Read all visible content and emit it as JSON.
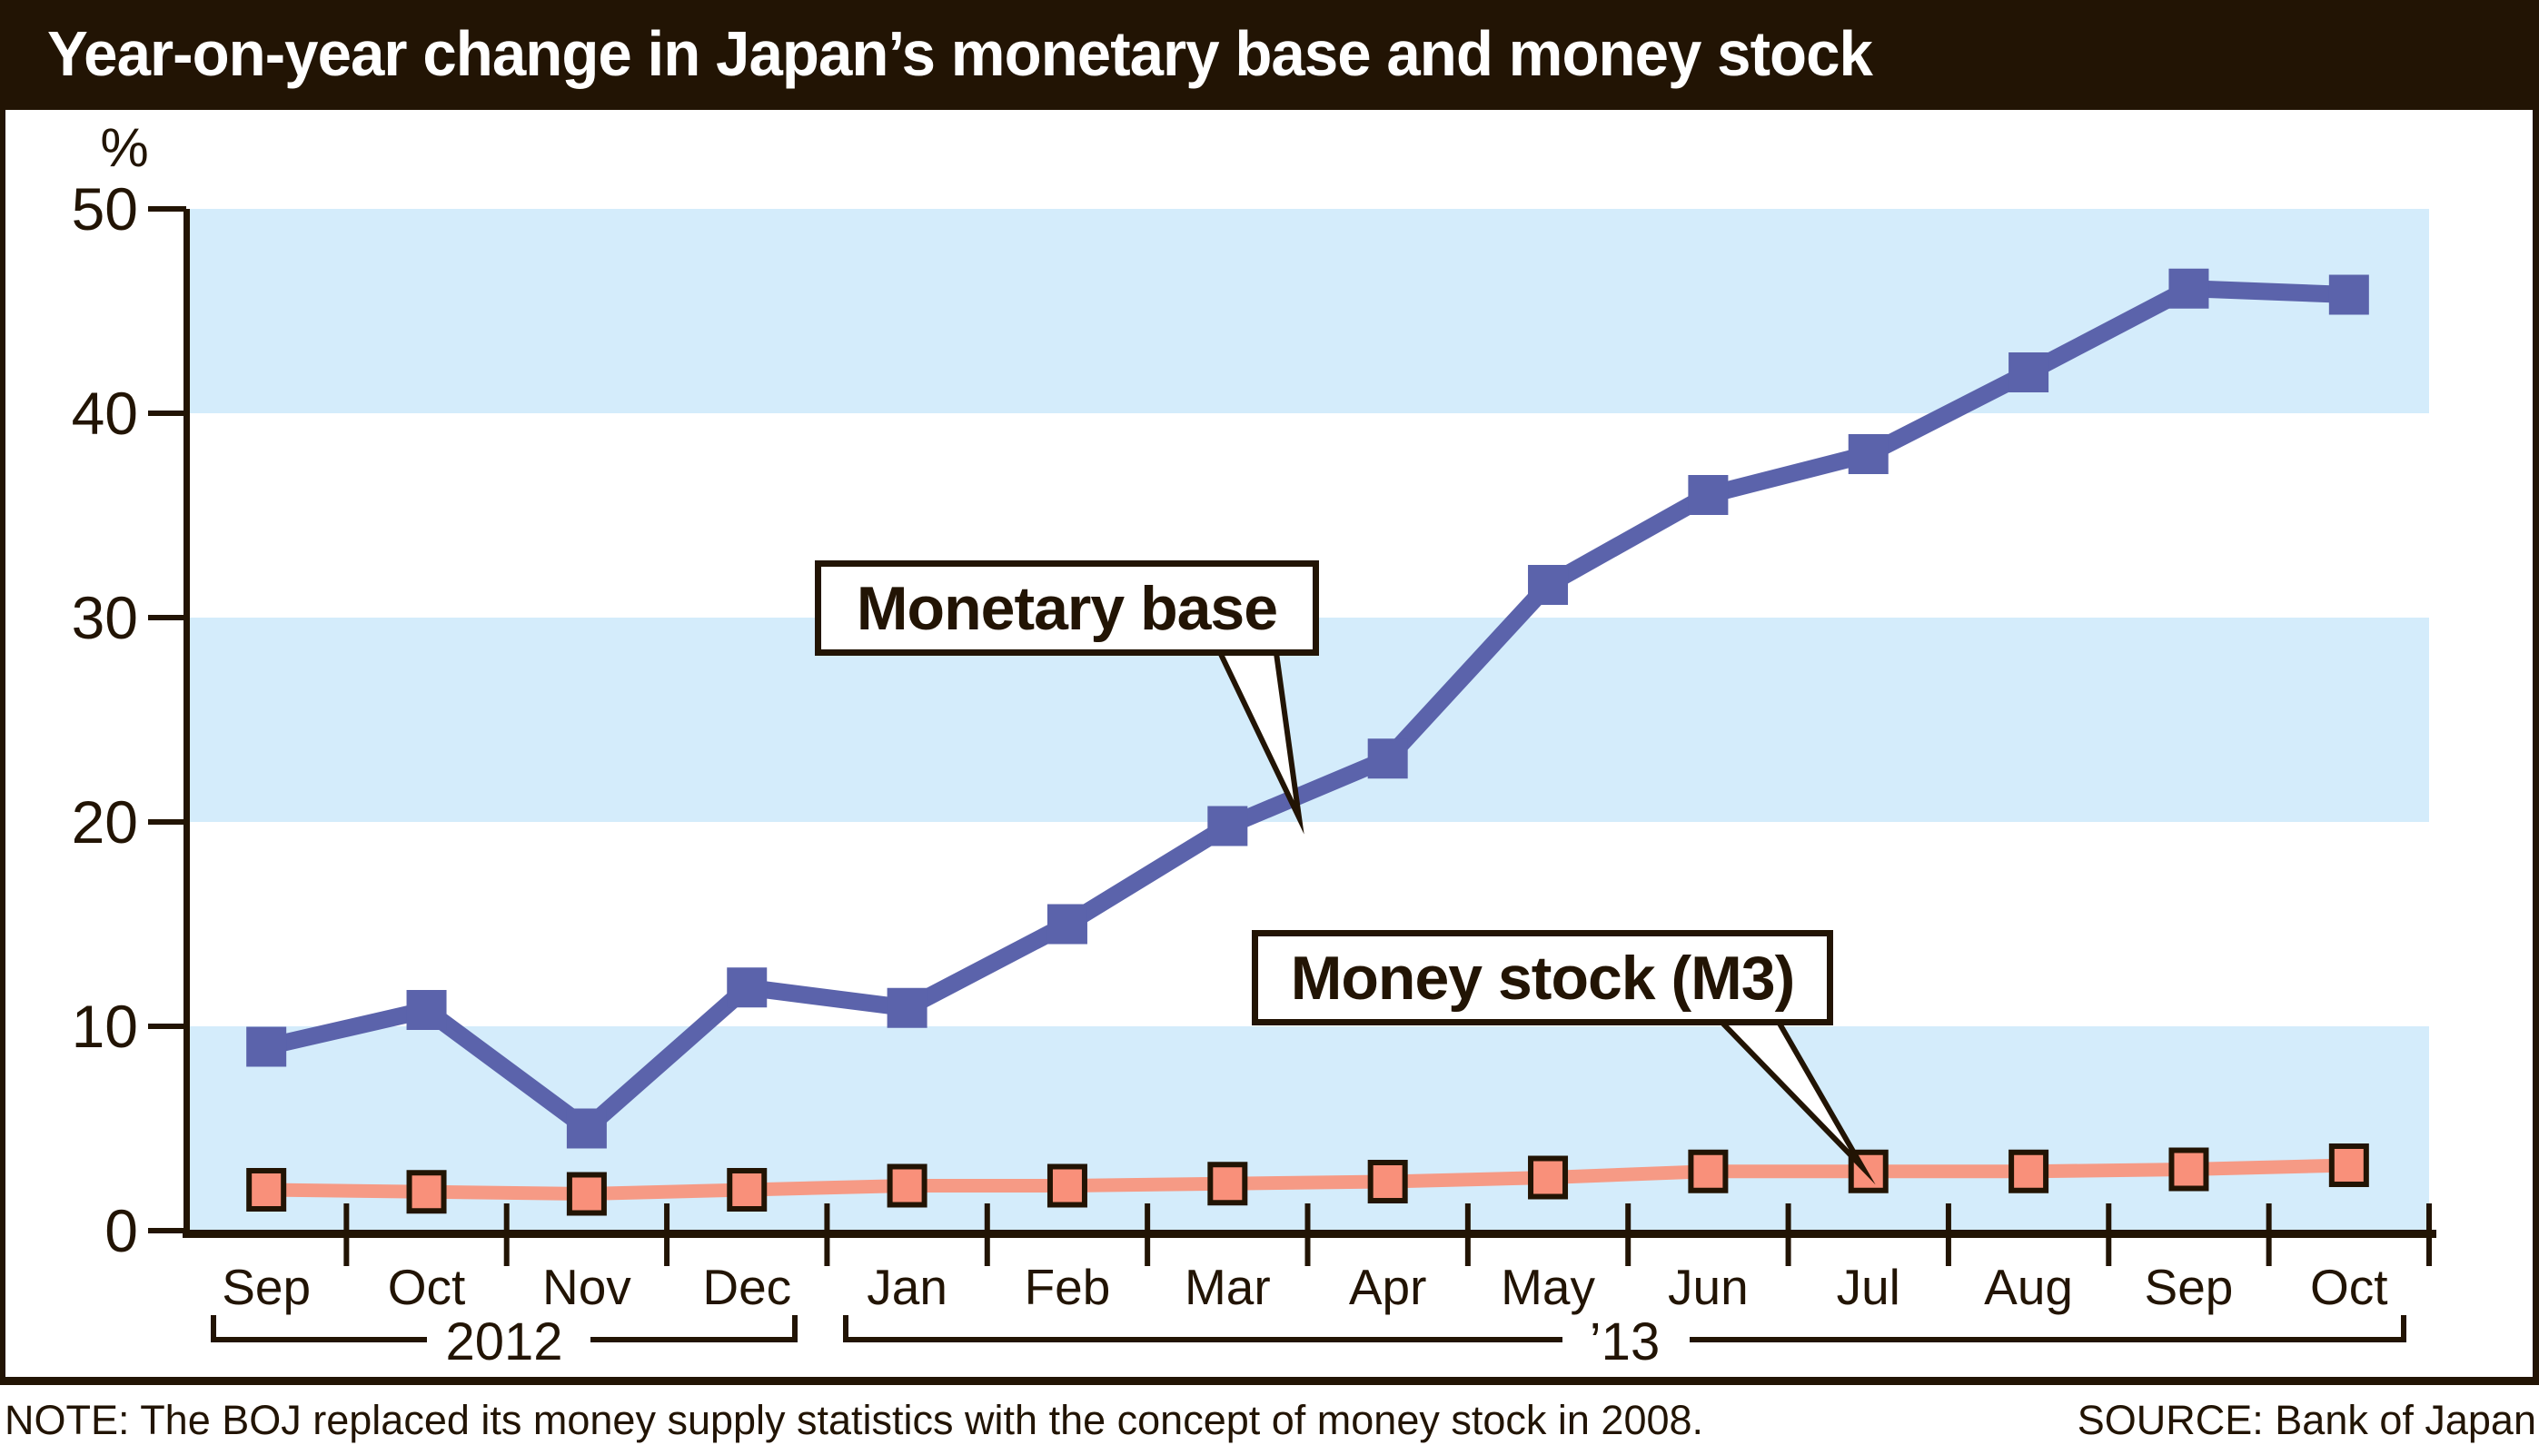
{
  "header": {
    "title": "Year-on-year change in Japan’s monetary base and money stock"
  },
  "footer": {
    "note": "NOTE: The BOJ replaced its money supply statistics with the concept of money stock in 2008.",
    "source": "SOURCE: Bank of Japan"
  },
  "colors": {
    "ink": "#221404",
    "title_text": "#ffffff",
    "band": "#d4ecfb",
    "monetary_base": "#5b63ab",
    "money_stock_line": "#f69a85",
    "money_stock_fill": "#f9907a",
    "callout_bg": "#ffffff",
    "background": "#ffffff"
  },
  "chart_data": {
    "type": "line",
    "title": "Year-on-year change in Japan’s monetary base and money stock",
    "xlabel": "",
    "ylabel": "%",
    "ylim": [
      0,
      50
    ],
    "yticks": [
      50,
      40,
      30,
      20,
      10,
      0
    ],
    "grid": false,
    "banded_rows": [
      [
        40,
        50
      ],
      [
        20,
        30
      ],
      [
        0,
        10
      ]
    ],
    "xtick_style": "between-categories",
    "legend_position": "callouts-on-plot",
    "categories": [
      "Sep",
      "Oct",
      "Nov",
      "Dec",
      "Jan",
      "Feb",
      "Mar",
      "Apr",
      "May",
      "Jun",
      "Jul",
      "Aug",
      "Sep",
      "Oct"
    ],
    "year_groups": [
      {
        "label": "2012",
        "from_index": 0,
        "to_index": 3
      },
      {
        "label": "’13",
        "from_index": 4,
        "to_index": 13
      }
    ],
    "series": [
      {
        "name": "Monetary base",
        "values": [
          9.0,
          10.8,
          5.0,
          11.9,
          10.9,
          15.0,
          19.8,
          23.1,
          31.6,
          36.0,
          38.0,
          42.0,
          46.1,
          45.8
        ]
      },
      {
        "name": "Money stock (M3)",
        "values": [
          2.0,
          1.9,
          1.8,
          2.0,
          2.2,
          2.2,
          2.3,
          2.4,
          2.6,
          2.9,
          2.9,
          2.9,
          3.0,
          3.2
        ]
      }
    ]
  }
}
